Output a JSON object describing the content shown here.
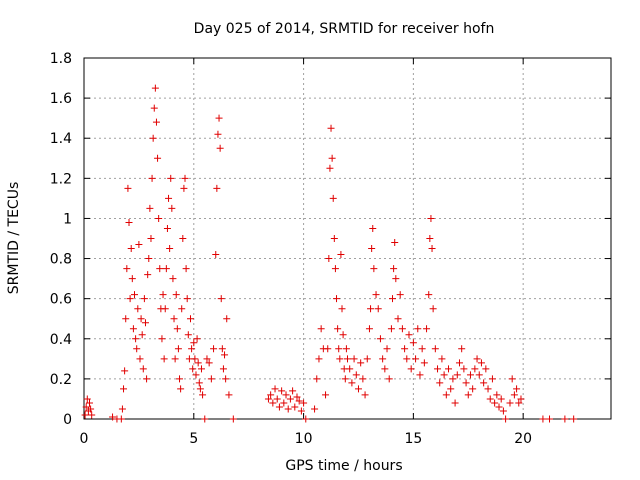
{
  "chart_data": {
    "type": "scatter",
    "title": "Day 025 of 2014, SRMTID for receiver hofn",
    "xlabel": "GPS time / hours",
    "ylabel": "SRMTID / TECUs",
    "xlim": [
      0,
      24
    ],
    "ylim": [
      0,
      1.8
    ],
    "x_ticks": [
      0,
      5,
      10,
      15,
      20
    ],
    "x_tick_labels": [
      "0",
      "5",
      "10",
      "15",
      "20"
    ],
    "y_ticks": [
      0,
      0.2,
      0.4,
      0.6,
      0.8,
      1.0,
      1.2,
      1.4,
      1.6,
      1.8
    ],
    "y_tick_labels": [
      "0",
      "0.2",
      "0.4",
      "0.6",
      "0.8",
      "1",
      "1.2",
      "1.4",
      "1.6",
      "1.8"
    ],
    "grid": true,
    "marker": "plus",
    "series": [
      {
        "name": "SRMTID",
        "color": "#e00000",
        "points": [
          [
            0.05,
            0.02
          ],
          [
            0.1,
            0.06
          ],
          [
            0.15,
            0.1
          ],
          [
            0.2,
            0.04
          ],
          [
            0.25,
            0.08
          ],
          [
            0.3,
            0.05
          ],
          [
            0.35,
            0.02
          ],
          [
            1.3,
            0.01
          ],
          [
            1.5,
            0.0
          ],
          [
            1.7,
            0.0
          ],
          [
            1.75,
            0.05
          ],
          [
            1.8,
            0.15
          ],
          [
            1.85,
            0.24
          ],
          [
            1.9,
            0.5
          ],
          [
            1.95,
            0.75
          ],
          [
            2.0,
            1.15
          ],
          [
            2.05,
            0.98
          ],
          [
            2.1,
            0.6
          ],
          [
            2.15,
            0.85
          ],
          [
            2.2,
            0.7
          ],
          [
            2.25,
            0.45
          ],
          [
            2.3,
            0.62
          ],
          [
            2.35,
            0.4
          ],
          [
            2.4,
            0.35
          ],
          [
            2.45,
            0.55
          ],
          [
            2.5,
            0.87
          ],
          [
            2.55,
            0.3
          ],
          [
            2.6,
            0.5
          ],
          [
            2.65,
            0.42
          ],
          [
            2.7,
            0.25
          ],
          [
            2.75,
            0.6
          ],
          [
            2.8,
            0.48
          ],
          [
            2.85,
            0.2
          ],
          [
            2.9,
            0.72
          ],
          [
            2.95,
            0.8
          ],
          [
            3.0,
            1.05
          ],
          [
            3.05,
            0.9
          ],
          [
            3.1,
            1.2
          ],
          [
            3.15,
            1.4
          ],
          [
            3.2,
            1.55
          ],
          [
            3.25,
            1.65
          ],
          [
            3.3,
            1.48
          ],
          [
            3.35,
            1.3
          ],
          [
            3.4,
            1.0
          ],
          [
            3.45,
            0.75
          ],
          [
            3.5,
            0.55
          ],
          [
            3.55,
            0.4
          ],
          [
            3.6,
            0.62
          ],
          [
            3.65,
            0.3
          ],
          [
            3.7,
            0.55
          ],
          [
            3.75,
            0.75
          ],
          [
            3.8,
            0.95
          ],
          [
            3.85,
            1.1
          ],
          [
            3.9,
            0.85
          ],
          [
            3.95,
            1.2
          ],
          [
            4.0,
            1.05
          ],
          [
            4.05,
            0.7
          ],
          [
            4.1,
            0.5
          ],
          [
            4.15,
            0.3
          ],
          [
            4.2,
            0.62
          ],
          [
            4.25,
            0.45
          ],
          [
            4.3,
            0.35
          ],
          [
            4.35,
            0.2
          ],
          [
            4.4,
            0.15
          ],
          [
            4.45,
            0.55
          ],
          [
            4.5,
            0.9
          ],
          [
            4.55,
            1.15
          ],
          [
            4.6,
            1.2
          ],
          [
            4.65,
            0.75
          ],
          [
            4.7,
            0.6
          ],
          [
            4.75,
            0.42
          ],
          [
            4.8,
            0.3
          ],
          [
            4.85,
            0.5
          ],
          [
            4.9,
            0.35
          ],
          [
            4.95,
            0.25
          ],
          [
            5.0,
            0.38
          ],
          [
            5.05,
            0.3
          ],
          [
            5.1,
            0.22
          ],
          [
            5.15,
            0.4
          ],
          [
            5.2,
            0.28
          ],
          [
            5.25,
            0.18
          ],
          [
            5.3,
            0.15
          ],
          [
            5.35,
            0.25
          ],
          [
            5.4,
            0.12
          ],
          [
            5.5,
            0.0
          ],
          [
            5.6,
            0.3
          ],
          [
            5.7,
            0.28
          ],
          [
            5.8,
            0.2
          ],
          [
            5.9,
            0.35
          ],
          [
            6.0,
            0.82
          ],
          [
            6.05,
            1.15
          ],
          [
            6.1,
            1.42
          ],
          [
            6.15,
            1.5
          ],
          [
            6.2,
            1.35
          ],
          [
            6.25,
            0.6
          ],
          [
            6.3,
            0.35
          ],
          [
            6.35,
            0.25
          ],
          [
            6.4,
            0.32
          ],
          [
            6.45,
            0.2
          ],
          [
            6.5,
            0.5
          ],
          [
            6.6,
            0.12
          ],
          [
            6.8,
            0.0
          ],
          [
            8.4,
            0.1
          ],
          [
            8.5,
            0.12
          ],
          [
            8.6,
            0.08
          ],
          [
            8.7,
            0.15
          ],
          [
            8.8,
            0.1
          ],
          [
            8.9,
            0.06
          ],
          [
            9.0,
            0.14
          ],
          [
            9.1,
            0.08
          ],
          [
            9.2,
            0.12
          ],
          [
            9.3,
            0.05
          ],
          [
            9.4,
            0.1
          ],
          [
            9.5,
            0.14
          ],
          [
            9.6,
            0.06
          ],
          [
            9.7,
            0.11
          ],
          [
            9.8,
            0.09
          ],
          [
            9.9,
            0.04
          ],
          [
            10.0,
            0.08
          ],
          [
            10.1,
            0.0
          ],
          [
            10.5,
            0.05
          ],
          [
            10.6,
            0.2
          ],
          [
            10.7,
            0.3
          ],
          [
            10.8,
            0.45
          ],
          [
            10.9,
            0.35
          ],
          [
            11.0,
            0.12
          ],
          [
            11.1,
            0.35
          ],
          [
            11.15,
            0.8
          ],
          [
            11.2,
            1.25
          ],
          [
            11.25,
            1.45
          ],
          [
            11.3,
            1.3
          ],
          [
            11.35,
            1.1
          ],
          [
            11.4,
            0.9
          ],
          [
            11.45,
            0.75
          ],
          [
            11.5,
            0.6
          ],
          [
            11.55,
            0.45
          ],
          [
            11.6,
            0.35
          ],
          [
            11.65,
            0.3
          ],
          [
            11.7,
            0.82
          ],
          [
            11.75,
            0.55
          ],
          [
            11.8,
            0.42
          ],
          [
            11.85,
            0.25
          ],
          [
            11.9,
            0.2
          ],
          [
            11.95,
            0.35
          ],
          [
            12.0,
            0.3
          ],
          [
            12.1,
            0.25
          ],
          [
            12.2,
            0.18
          ],
          [
            12.3,
            0.3
          ],
          [
            12.4,
            0.22
          ],
          [
            12.5,
            0.15
          ],
          [
            12.6,
            0.28
          ],
          [
            12.7,
            0.2
          ],
          [
            12.8,
            0.12
          ],
          [
            12.9,
            0.3
          ],
          [
            13.0,
            0.45
          ],
          [
            13.05,
            0.55
          ],
          [
            13.1,
            0.85
          ],
          [
            13.15,
            0.95
          ],
          [
            13.2,
            0.75
          ],
          [
            13.3,
            0.62
          ],
          [
            13.4,
            0.55
          ],
          [
            13.5,
            0.4
          ],
          [
            13.6,
            0.3
          ],
          [
            13.7,
            0.25
          ],
          [
            13.8,
            0.35
          ],
          [
            13.9,
            0.2
          ],
          [
            14.0,
            0.45
          ],
          [
            14.05,
            0.6
          ],
          [
            14.1,
            0.75
          ],
          [
            14.15,
            0.88
          ],
          [
            14.2,
            0.7
          ],
          [
            14.3,
            0.5
          ],
          [
            14.4,
            0.62
          ],
          [
            14.5,
            0.45
          ],
          [
            14.6,
            0.35
          ],
          [
            14.7,
            0.3
          ],
          [
            14.8,
            0.42
          ],
          [
            14.9,
            0.25
          ],
          [
            15.0,
            0.38
          ],
          [
            15.1,
            0.3
          ],
          [
            15.2,
            0.45
          ],
          [
            15.3,
            0.22
          ],
          [
            15.4,
            0.35
          ],
          [
            15.5,
            0.28
          ],
          [
            15.6,
            0.45
          ],
          [
            15.7,
            0.62
          ],
          [
            15.75,
            0.9
          ],
          [
            15.8,
            1.0
          ],
          [
            15.85,
            0.85
          ],
          [
            15.9,
            0.55
          ],
          [
            16.0,
            0.35
          ],
          [
            16.1,
            0.25
          ],
          [
            16.2,
            0.18
          ],
          [
            16.3,
            0.3
          ],
          [
            16.4,
            0.22
          ],
          [
            16.5,
            0.12
          ],
          [
            16.6,
            0.25
          ],
          [
            16.7,
            0.15
          ],
          [
            16.8,
            0.2
          ],
          [
            16.9,
            0.08
          ],
          [
            17.0,
            0.22
          ],
          [
            17.1,
            0.28
          ],
          [
            17.2,
            0.35
          ],
          [
            17.3,
            0.25
          ],
          [
            17.4,
            0.18
          ],
          [
            17.5,
            0.12
          ],
          [
            17.6,
            0.22
          ],
          [
            17.7,
            0.15
          ],
          [
            17.8,
            0.25
          ],
          [
            17.9,
            0.3
          ],
          [
            18.0,
            0.22
          ],
          [
            18.1,
            0.28
          ],
          [
            18.2,
            0.18
          ],
          [
            18.3,
            0.25
          ],
          [
            18.4,
            0.15
          ],
          [
            18.5,
            0.1
          ],
          [
            18.6,
            0.2
          ],
          [
            18.7,
            0.08
          ],
          [
            18.8,
            0.12
          ],
          [
            18.9,
            0.06
          ],
          [
            19.0,
            0.1
          ],
          [
            19.1,
            0.04
          ],
          [
            19.2,
            0.0
          ],
          [
            19.4,
            0.08
          ],
          [
            19.5,
            0.2
          ],
          [
            19.6,
            0.12
          ],
          [
            19.7,
            0.15
          ],
          [
            19.8,
            0.08
          ],
          [
            19.9,
            0.1
          ],
          [
            20.9,
            0.0
          ],
          [
            21.2,
            0.0
          ],
          [
            21.9,
            0.0
          ],
          [
            22.3,
            0.0
          ]
        ]
      }
    ]
  }
}
